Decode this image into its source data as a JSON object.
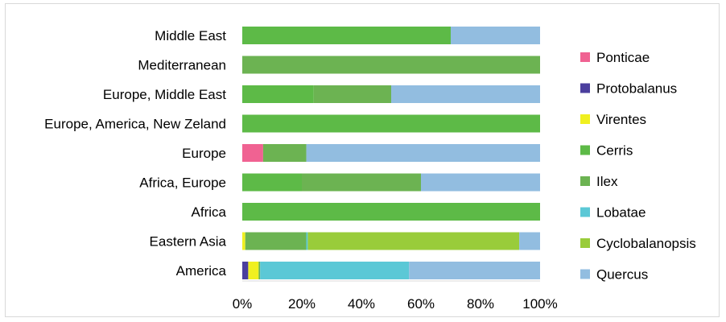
{
  "chart_data": {
    "type": "bar",
    "orientation": "horizontal",
    "stacked": "percent",
    "title": "",
    "xlabel": "",
    "ylabel": "",
    "xlim": [
      0,
      100
    ],
    "x_ticks": [
      "0%",
      "20%",
      "40%",
      "60%",
      "80%",
      "100%"
    ],
    "grid": false,
    "legend_position": "right",
    "categories": [
      "Middle East",
      "Mediterranean",
      "Europe, Middle East",
      "Europe, America, New Zeland",
      "Europe",
      "Africa, Europe",
      "Africa",
      "Eastern Asia",
      "America"
    ],
    "series": [
      {
        "name": "Ponticae",
        "color": "#f06292",
        "values": [
          0,
          0,
          0,
          0,
          7,
          0,
          0,
          0,
          0
        ]
      },
      {
        "name": "Protobalanus",
        "color": "#4b3f9e",
        "values": [
          0,
          0,
          0,
          0,
          0,
          0,
          0,
          0,
          2
        ]
      },
      {
        "name": "Virentes",
        "color": "#f0f020",
        "values": [
          0,
          0,
          0,
          0,
          0,
          0,
          0,
          1,
          3.5
        ]
      },
      {
        "name": "Cerris",
        "color": "#5dba47",
        "values": [
          70,
          0,
          24,
          100,
          0,
          20,
          100,
          0,
          0
        ]
      },
      {
        "name": "Ilex",
        "color": "#6cb352",
        "values": [
          0,
          100,
          26,
          0,
          14.5,
          40,
          0,
          20.5,
          0.5
        ]
      },
      {
        "name": "Lobatae",
        "color": "#5bc8d6",
        "values": [
          0,
          0,
          0,
          0,
          0,
          0,
          0,
          0.5,
          50
        ]
      },
      {
        "name": "Cyclobalanopsis",
        "color": "#99cc3a",
        "values": [
          0,
          0,
          0,
          0,
          0,
          0,
          0,
          71,
          0
        ]
      },
      {
        "name": "Quercus",
        "color": "#92bde0",
        "values": [
          30,
          0,
          50,
          0,
          78.5,
          40,
          0,
          7,
          44
        ]
      }
    ]
  }
}
